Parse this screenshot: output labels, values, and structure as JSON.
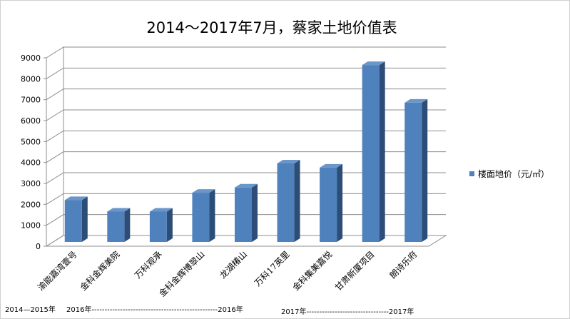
{
  "chart_data": {
    "type": "bar",
    "title": "2014～2017年7月，蔡家土地价值表",
    "categories": [
      "渝能嘉湾壹号",
      "金科金辉美院",
      "万科观承",
      "金科金辉博翠山",
      "龙湖椿山",
      "万科17英里",
      "金科集美嘉悦",
      "甘肃新厦项目",
      "朗诗乐府"
    ],
    "series": [
      {
        "name": "楼面地价（元/㎡）",
        "values": [
          2000,
          1450,
          1450,
          2350,
          2600,
          3750,
          3550,
          8450,
          6650
        ],
        "color": "#4f81bd"
      }
    ],
    "ylim": [
      0,
      9000
    ],
    "yticks": [
      0,
      1000,
      2000,
      3000,
      4000,
      5000,
      6000,
      7000,
      8000,
      9000
    ],
    "grid": true,
    "legend": "right"
  },
  "periods": {
    "p1": "2014—2015年",
    "p2_start": "2016年-------------------------------------------------2016年",
    "p3": "2017年--------------------------------2017年"
  }
}
